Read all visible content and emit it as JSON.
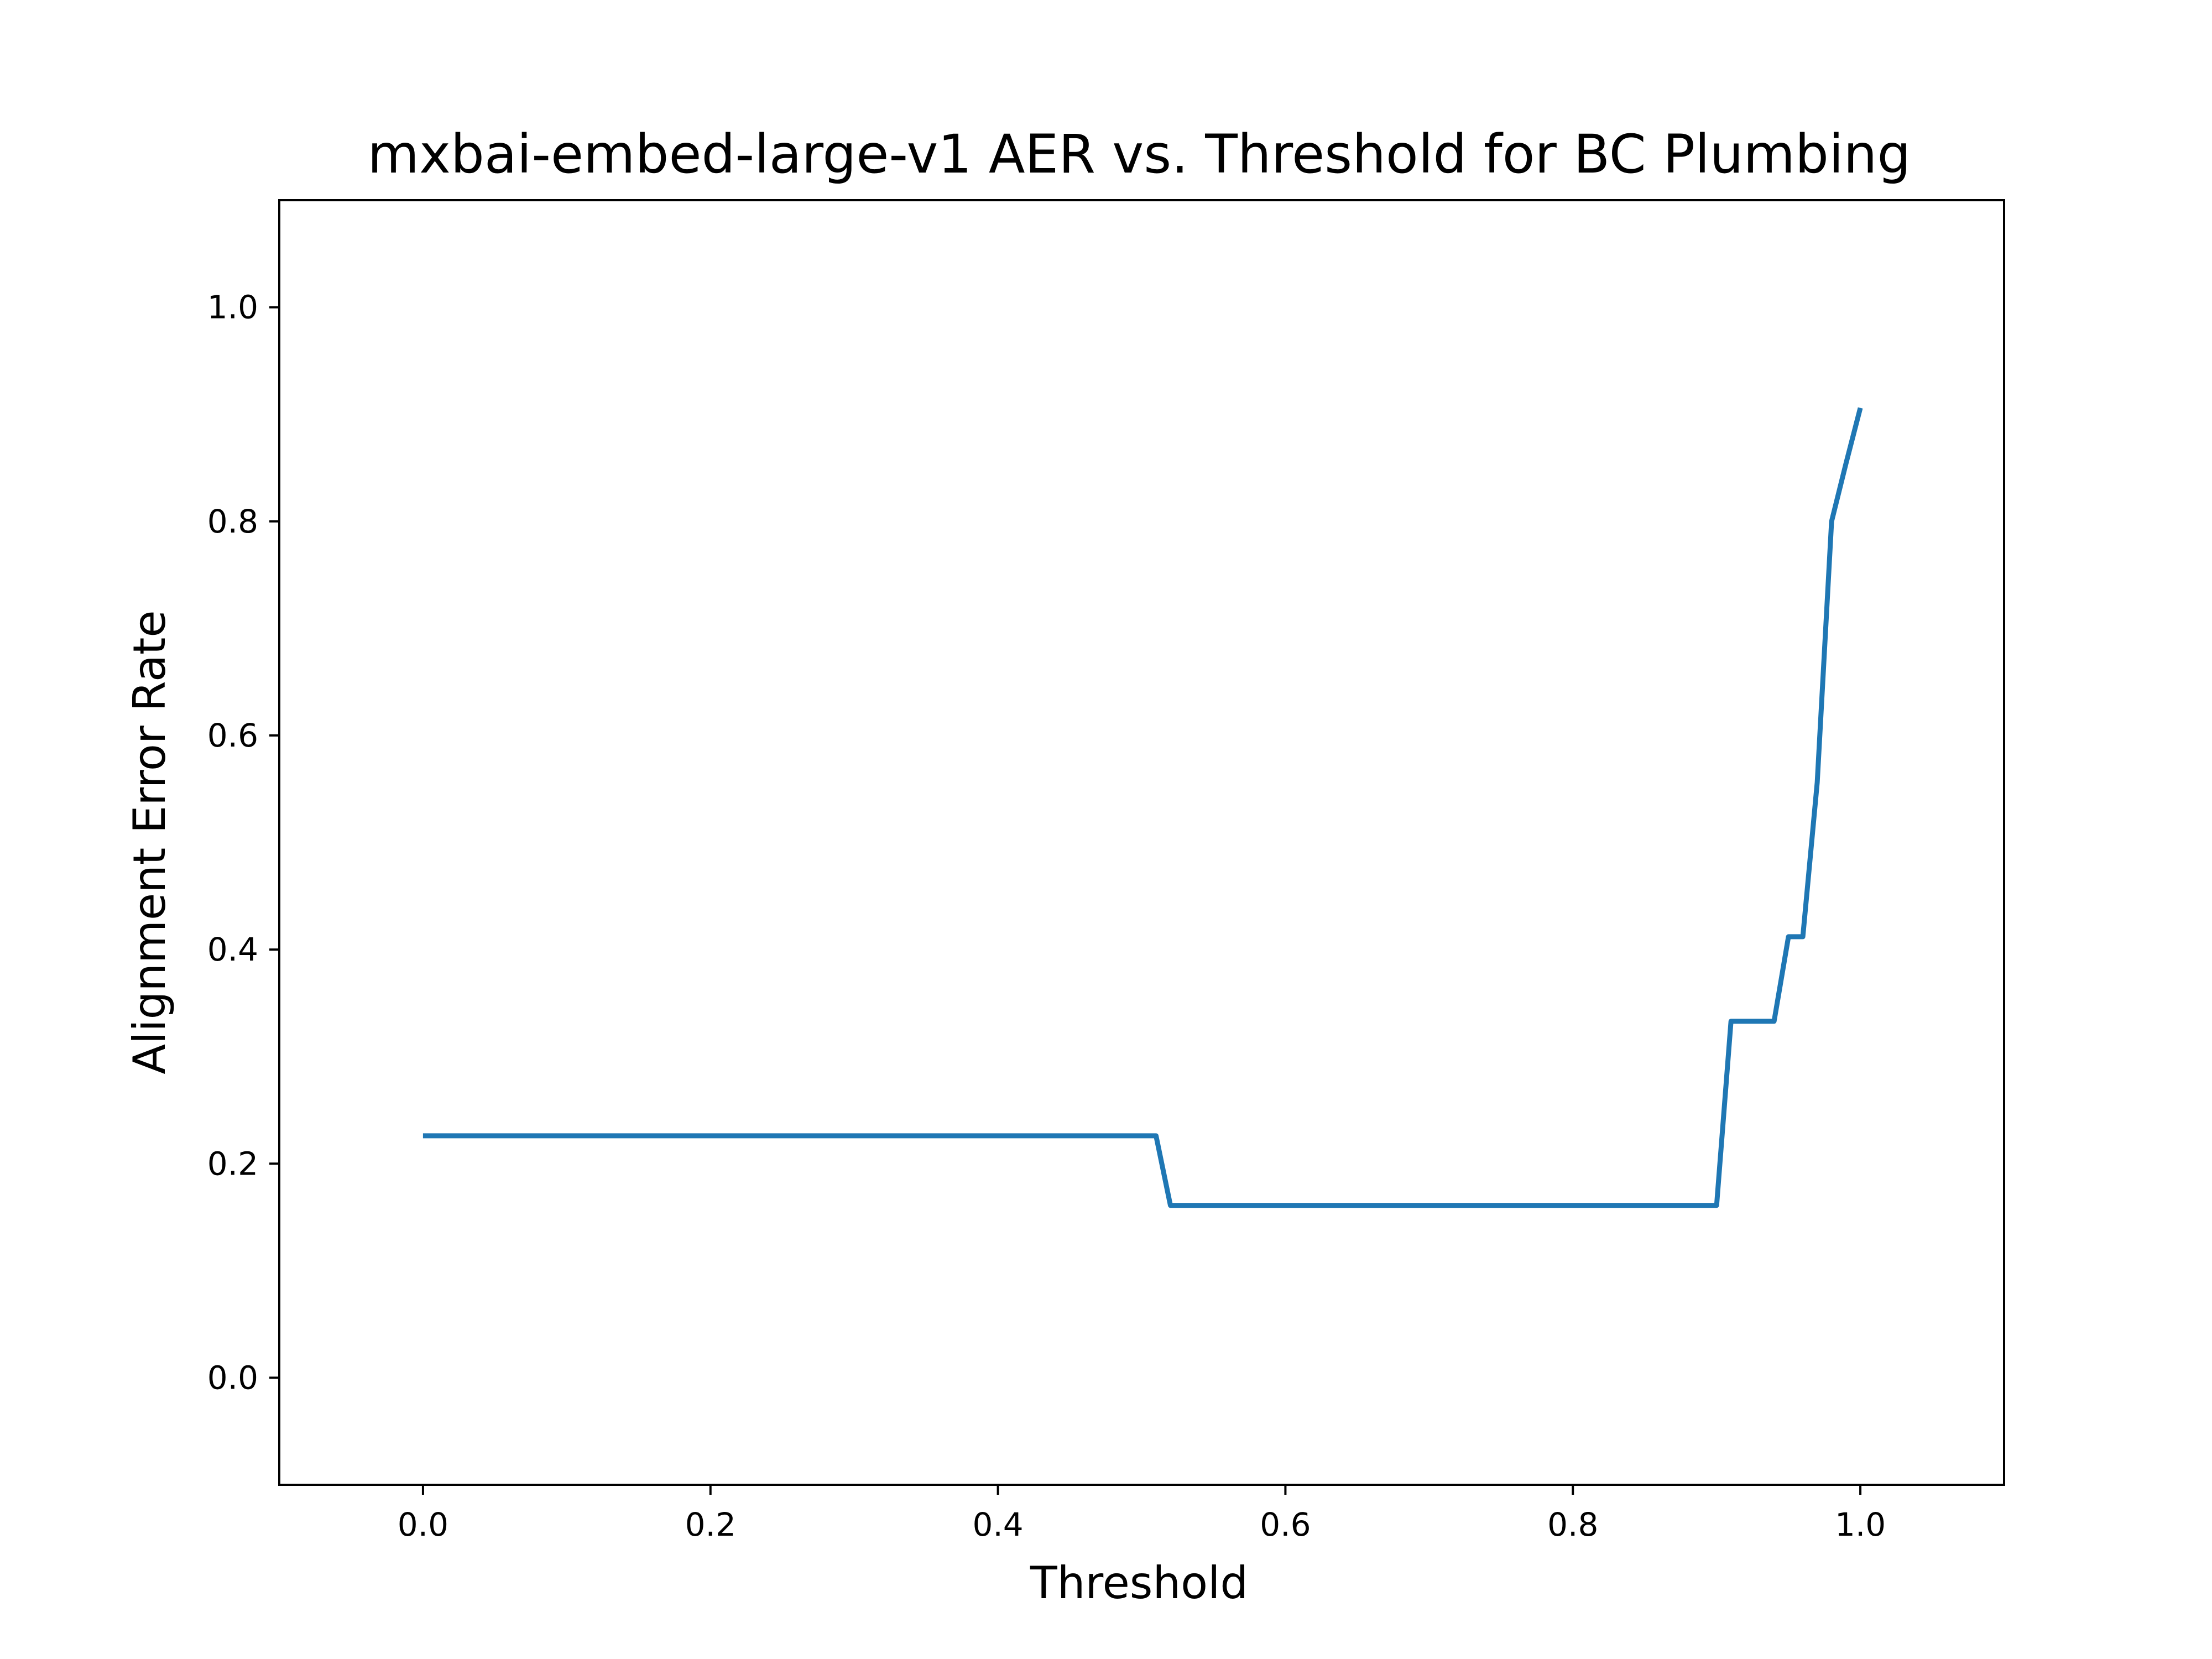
{
  "chart_data": {
    "type": "line",
    "title": "mxbai-embed-large-v1 AER vs. Threshold for BC Plumbing",
    "xlabel": "Threshold",
    "ylabel": "Alignment Error Rate",
    "xlim": [
      -0.1,
      1.1
    ],
    "ylim": [
      -0.1,
      1.1
    ],
    "xticks": [
      0.0,
      0.2,
      0.4,
      0.6,
      0.8,
      1.0
    ],
    "xtick_labels": [
      "0.0",
      "0.2",
      "0.4",
      "0.6",
      "0.8",
      "1.0"
    ],
    "yticks": [
      0.0,
      0.2,
      0.4,
      0.6,
      0.8,
      1.0
    ],
    "ytick_labels": [
      "0.0",
      "0.2",
      "0.4",
      "0.6",
      "0.8",
      "1.0"
    ],
    "grid": false,
    "legend": "none",
    "line_color": "#1f77b4",
    "series": [
      {
        "x": [
          0.0,
          0.01,
          0.02,
          0.03,
          0.04,
          0.05,
          0.06,
          0.07,
          0.08,
          0.09,
          0.1,
          0.11,
          0.12,
          0.13,
          0.14,
          0.15,
          0.16,
          0.17,
          0.18,
          0.19,
          0.2,
          0.21,
          0.22,
          0.23,
          0.24,
          0.25,
          0.26,
          0.27,
          0.28,
          0.29,
          0.3,
          0.31,
          0.32,
          0.33,
          0.34,
          0.35,
          0.36,
          0.37,
          0.38,
          0.39,
          0.4,
          0.41,
          0.42,
          0.43,
          0.44,
          0.45,
          0.46,
          0.47,
          0.48,
          0.49,
          0.5,
          0.51,
          0.52,
          0.53,
          0.54,
          0.55,
          0.56,
          0.57,
          0.58,
          0.59,
          0.6,
          0.61,
          0.62,
          0.63,
          0.64,
          0.65,
          0.66,
          0.67,
          0.68,
          0.69,
          0.7,
          0.71,
          0.72,
          0.73,
          0.74,
          0.75,
          0.76,
          0.77,
          0.78,
          0.79,
          0.8,
          0.81,
          0.82,
          0.83,
          0.84,
          0.85,
          0.86,
          0.87,
          0.88,
          0.89,
          0.9,
          0.91,
          0.92,
          0.93,
          0.94,
          0.95,
          0.96,
          0.97,
          0.98,
          0.99,
          1.0
        ],
        "y": [
          0.226,
          0.226,
          0.226,
          0.226,
          0.226,
          0.226,
          0.226,
          0.226,
          0.226,
          0.226,
          0.226,
          0.226,
          0.226,
          0.226,
          0.226,
          0.226,
          0.226,
          0.226,
          0.226,
          0.226,
          0.226,
          0.226,
          0.226,
          0.226,
          0.226,
          0.226,
          0.226,
          0.226,
          0.226,
          0.226,
          0.226,
          0.226,
          0.226,
          0.226,
          0.226,
          0.226,
          0.226,
          0.226,
          0.226,
          0.226,
          0.226,
          0.226,
          0.226,
          0.226,
          0.226,
          0.226,
          0.226,
          0.226,
          0.226,
          0.226,
          0.226,
          0.226,
          0.161,
          0.161,
          0.161,
          0.161,
          0.161,
          0.161,
          0.161,
          0.161,
          0.161,
          0.161,
          0.161,
          0.161,
          0.161,
          0.161,
          0.161,
          0.161,
          0.161,
          0.161,
          0.161,
          0.161,
          0.161,
          0.161,
          0.161,
          0.161,
          0.161,
          0.161,
          0.161,
          0.161,
          0.161,
          0.161,
          0.161,
          0.161,
          0.161,
          0.161,
          0.161,
          0.161,
          0.161,
          0.161,
          0.161,
          0.333,
          0.333,
          0.333,
          0.333,
          0.412,
          0.412,
          0.556,
          0.8,
          0.854,
          0.906
        ]
      }
    ]
  }
}
